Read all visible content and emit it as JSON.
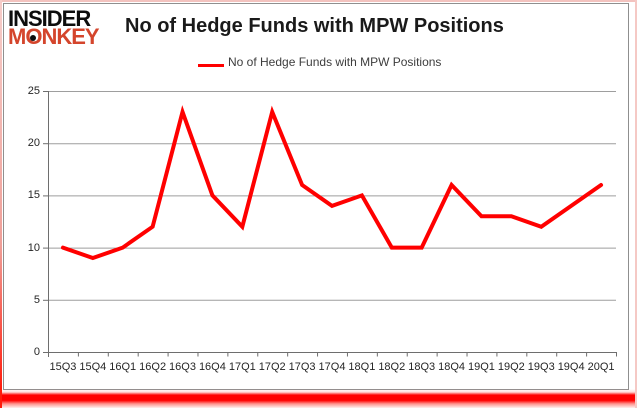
{
  "logo": {
    "line1": "INSIDER",
    "monkey_pre": "M",
    "monkey_o": "O",
    "monkey_post": "NKEY"
  },
  "header": {
    "title": "No of Hedge Funds with MPW Positions"
  },
  "legend": {
    "label": "No of Hedge Funds with MPW Positions"
  },
  "chart_data": {
    "type": "line",
    "title": "No of Hedge Funds with MPW Positions",
    "categories": [
      "15Q3",
      "15Q4",
      "16Q1",
      "16Q2",
      "16Q3",
      "16Q4",
      "17Q1",
      "17Q2",
      "17Q3",
      "17Q4",
      "18Q1",
      "18Q2",
      "18Q3",
      "18Q4",
      "19Q1",
      "19Q2",
      "19Q3",
      "19Q4",
      "20Q1"
    ],
    "series": [
      {
        "name": "No of Hedge Funds with MPW Positions",
        "color": "#ff0000",
        "values": [
          10,
          9,
          10,
          12,
          23,
          15,
          12,
          23,
          16,
          14,
          15,
          10,
          10,
          16,
          13,
          13,
          12,
          14,
          16
        ]
      }
    ],
    "xlabel": "",
    "ylabel": "",
    "ylim": [
      0,
      25
    ],
    "yticks": [
      0,
      5,
      10,
      15,
      20,
      25
    ],
    "grid": true,
    "legend_position": "top-center"
  },
  "colors": {
    "series_line": "#ff0000",
    "logo_black": "#0d0d0d",
    "logo_red": "#d4452c",
    "gridline": "#9e9e9e",
    "axis": "#6e6e6e",
    "frame_border": "#8f8f8f",
    "outer_border_pink": "#f3c3bf",
    "bottom_glow_red": "#ff0000",
    "title_text": "#1a1a1a",
    "axis_label_text": "#262626"
  }
}
